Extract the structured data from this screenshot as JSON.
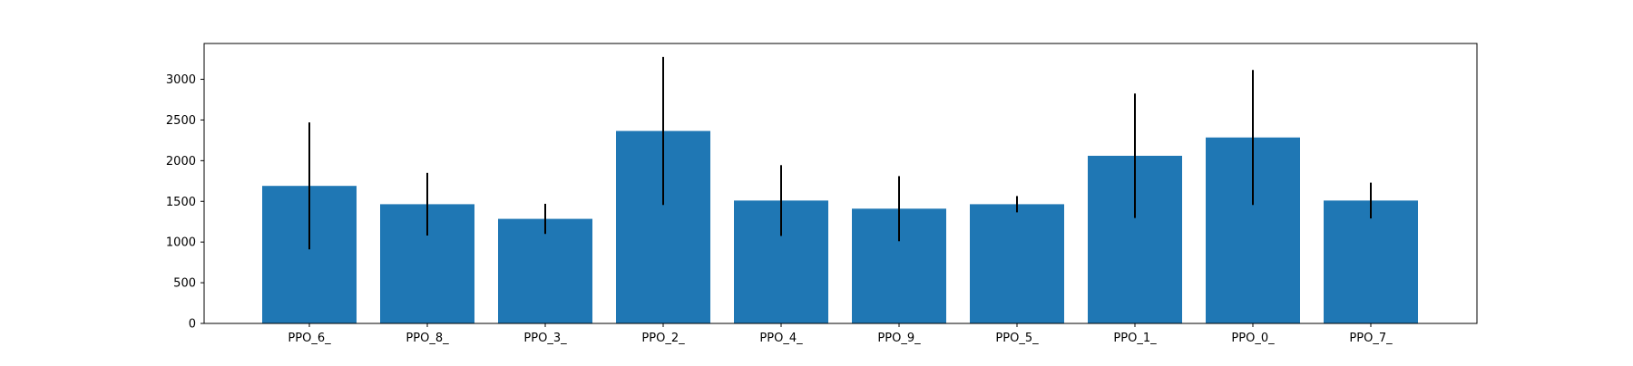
{
  "chart_data": {
    "type": "bar",
    "categories": [
      "PPO_6_",
      "PPO_8_",
      "PPO_3_",
      "PPO_2_",
      "PPO_4_",
      "PPO_9_",
      "PPO_5_",
      "PPO_1_",
      "PPO_0_",
      "PPO_7_"
    ],
    "values": [
      1690,
      1465,
      1285,
      2365,
      1510,
      1410,
      1465,
      2060,
      2285,
      1510
    ],
    "error": [
      780,
      385,
      185,
      910,
      435,
      400,
      100,
      765,
      830,
      220
    ],
    "title": "",
    "xlabel": "",
    "ylabel": "",
    "ylim": [
      0,
      3440
    ],
    "yticks": [
      0,
      500,
      1000,
      1500,
      2000,
      2500,
      3000
    ],
    "ytick_labels": [
      "0",
      "500",
      "1000",
      "1500",
      "2000",
      "2500",
      "3000"
    ],
    "grid": false,
    "colors": {
      "bar": "#1f77b4",
      "error": "#000000",
      "axis": "#000000"
    }
  }
}
